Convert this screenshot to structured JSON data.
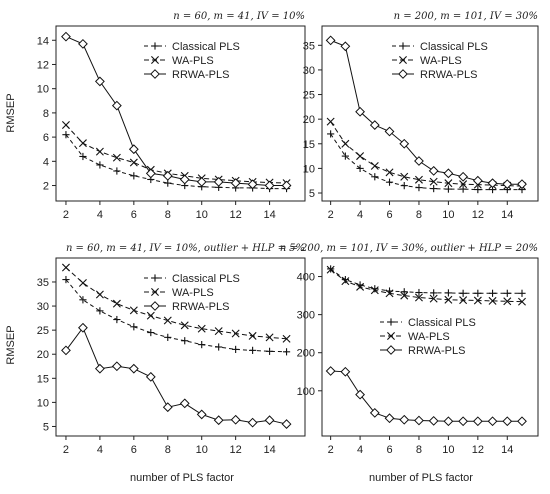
{
  "figure": {
    "ylabel": "RMSEP",
    "xlabel": "number of PLS factor"
  },
  "chart_data": [
    {
      "type": "line",
      "title": "n = 60, m = 41, IV = 10%",
      "xlim": [
        2,
        15.5
      ],
      "ylim": [
        1.3,
        14.6
      ],
      "x_ticks": [
        2,
        4,
        6,
        8,
        10,
        12,
        14
      ],
      "y_ticks": [
        2,
        4,
        6,
        8,
        10,
        12,
        14
      ],
      "x_tick_labels": [
        "2",
        "4",
        "6",
        "8",
        "10",
        "12",
        "14"
      ],
      "y_tick_labels": [
        "2",
        "4",
        "6",
        "8",
        "10",
        "12",
        "14"
      ],
      "legend_position": "top-right",
      "x": [
        2,
        3,
        4,
        5,
        6,
        7,
        8,
        9,
        10,
        11,
        12,
        13,
        14,
        15
      ],
      "series": [
        {
          "name": "Classical PLS",
          "marker": "plus",
          "dash": "4,3",
          "values": [
            6.2,
            4.4,
            3.7,
            3.2,
            2.8,
            2.5,
            2.2,
            2.0,
            1.9,
            1.85,
            1.8,
            1.8,
            1.75,
            1.75
          ]
        },
        {
          "name": "WA-PLS",
          "marker": "x",
          "dash": "5,3",
          "values": [
            7.0,
            5.5,
            4.8,
            4.3,
            3.9,
            3.3,
            3.0,
            2.8,
            2.6,
            2.5,
            2.4,
            2.3,
            2.25,
            2.2
          ]
        },
        {
          "name": "RRWA-PLS",
          "marker": "diamond",
          "dash": "",
          "values": [
            14.3,
            13.7,
            10.6,
            8.6,
            5.0,
            3.0,
            2.8,
            2.5,
            2.3,
            2.3,
            2.2,
            2.1,
            2.0,
            2.0
          ]
        }
      ]
    },
    {
      "type": "line",
      "title": "n = 200, m = 101, IV = 30%",
      "xlim": [
        2,
        15.5
      ],
      "ylim": [
        4.8,
        37.5
      ],
      "x_ticks": [
        2,
        4,
        6,
        8,
        10,
        12,
        14
      ],
      "y_ticks": [
        5,
        10,
        15,
        20,
        25,
        30,
        35
      ],
      "x_tick_labels": [
        "2",
        "4",
        "6",
        "8",
        "10",
        "12",
        "14"
      ],
      "y_tick_labels": [
        "5",
        "10",
        "15",
        "20",
        "25",
        "30",
        "35"
      ],
      "legend_position": "top-right",
      "x": [
        2,
        3,
        4,
        5,
        6,
        7,
        8,
        9,
        10,
        11,
        12,
        13,
        14,
        15
      ],
      "series": [
        {
          "name": "Classical PLS",
          "marker": "plus",
          "dash": "4,3",
          "values": [
            17.0,
            12.5,
            10.0,
            8.3,
            7.2,
            6.5,
            6.1,
            5.9,
            5.8,
            5.8,
            5.7,
            5.7,
            5.7,
            5.7
          ]
        },
        {
          "name": "WA-PLS",
          "marker": "x",
          "dash": "5,3",
          "values": [
            19.5,
            15.0,
            12.5,
            10.5,
            9.2,
            8.3,
            7.7,
            7.3,
            7.0,
            6.8,
            6.7,
            6.6,
            6.5,
            6.4
          ]
        },
        {
          "name": "RRWA-PLS",
          "marker": "diamond",
          "dash": "",
          "values": [
            36.0,
            34.8,
            21.5,
            18.8,
            17.5,
            15.0,
            11.5,
            9.5,
            9.0,
            8.3,
            7.5,
            7.0,
            6.8,
            6.8
          ]
        }
      ]
    },
    {
      "type": "line",
      "title": "n = 60, m = 41, IV = 10%, outlier + HLP = 5%",
      "xlim": [
        2,
        15.5
      ],
      "ylim": [
        4.5,
        38.5
      ],
      "x_ticks": [
        2,
        4,
        6,
        8,
        10,
        12,
        14
      ],
      "y_ticks": [
        5,
        10,
        15,
        20,
        25,
        30,
        35
      ],
      "x_tick_labels": [
        "2",
        "4",
        "6",
        "8",
        "10",
        "12",
        "14"
      ],
      "y_tick_labels": [
        "5",
        "10",
        "15",
        "20",
        "25",
        "30",
        "35"
      ],
      "legend_position": "top-right",
      "x": [
        2,
        3,
        4,
        5,
        6,
        7,
        8,
        9,
        10,
        11,
        12,
        13,
        14,
        15
      ],
      "series": [
        {
          "name": "Classical PLS",
          "marker": "plus",
          "dash": "4,3",
          "values": [
            35.5,
            31.3,
            29.0,
            27.2,
            25.7,
            24.5,
            23.5,
            22.8,
            22.0,
            21.5,
            21.0,
            20.8,
            20.6,
            20.5
          ]
        },
        {
          "name": "WA-PLS",
          "marker": "x",
          "dash": "5,3",
          "values": [
            38.0,
            34.8,
            32.4,
            30.5,
            29.1,
            28.0,
            27.0,
            26.0,
            25.3,
            24.8,
            24.3,
            23.8,
            23.5,
            23.2
          ]
        },
        {
          "name": "RRWA-PLS",
          "marker": "diamond",
          "dash": "",
          "values": [
            20.8,
            25.5,
            17.0,
            17.5,
            17.0,
            15.3,
            9.0,
            9.8,
            7.5,
            6.3,
            6.4,
            5.8,
            6.3,
            5.5
          ]
        }
      ]
    },
    {
      "type": "line",
      "title": "n = 200, m = 101, IV = 30%, outlier + HLP = 20%",
      "xlim": [
        2,
        15.5
      ],
      "ylim": [
        0,
        430
      ],
      "x_ticks": [
        2,
        4,
        6,
        8,
        10,
        12,
        14
      ],
      "y_ticks": [
        100,
        200,
        300,
        400
      ],
      "x_tick_labels": [
        "2",
        "4",
        "6",
        "8",
        "10",
        "12",
        "14"
      ],
      "y_tick_labels": [
        "100",
        "200",
        "300",
        "400"
      ],
      "legend_position": "center-right",
      "x": [
        2,
        3,
        4,
        5,
        6,
        7,
        8,
        9,
        10,
        11,
        12,
        13,
        14,
        15
      ],
      "series": [
        {
          "name": "Classical PLS",
          "marker": "plus",
          "dash": "4,3",
          "values": [
            420,
            392,
            378,
            368,
            362,
            360,
            358,
            357,
            357,
            356,
            356,
            356,
            356,
            356
          ]
        },
        {
          "name": "WA-PLS",
          "marker": "x",
          "dash": "5,3",
          "values": [
            418,
            388,
            373,
            364,
            356,
            350,
            345,
            342,
            339,
            338,
            337,
            336,
            335,
            334
          ]
        },
        {
          "name": "RRWA-PLS",
          "marker": "diamond",
          "dash": "",
          "values": [
            152,
            150,
            90,
            42,
            28,
            24,
            22,
            21,
            20,
            20,
            20,
            20,
            20,
            20
          ]
        }
      ]
    }
  ]
}
